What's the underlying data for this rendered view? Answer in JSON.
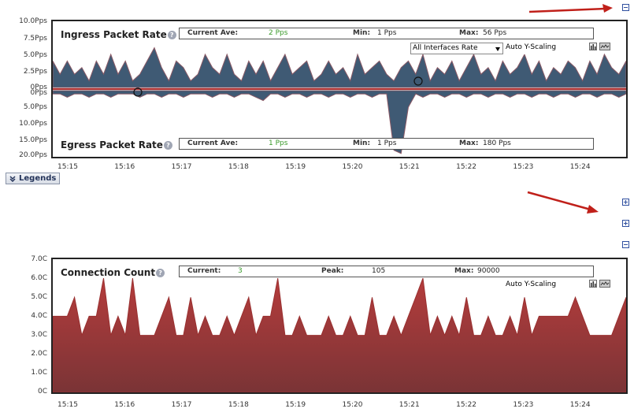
{
  "colors": {
    "packet_fill": "#3f5a74",
    "connection_fill": "#a83a3a",
    "current_value": "#3a9a2a",
    "baseline_red": "#b03030",
    "arrow_red": "#c0201a"
  },
  "x_ticks": [
    "15:15",
    "15:16",
    "15:17",
    "15:18",
    "15:19",
    "15:20",
    "15:21",
    "15:22",
    "15:23",
    "15:24"
  ],
  "packet_panel": {
    "ingress_title": "Ingress Packet Rate",
    "egress_title": "Egress Packet Rate",
    "help_glyph": "?",
    "ingress_stats": {
      "current_label": "Current Ave:",
      "current_value": "2 Pps",
      "min_label": "Min:",
      "min_value": "1 Pps",
      "max_label": "Max:",
      "max_value": "56 Pps"
    },
    "egress_stats": {
      "current_label": "Current Ave:",
      "current_value": "1 Pps",
      "min_label": "Min:",
      "min_value": "1 Pps",
      "max_label": "Max:",
      "max_value": "180 Pps"
    },
    "interface_select": "All Interfaces Rate",
    "scaling": "Auto Y-Scaling",
    "ingress_y_ticks": [
      "10.0Pps",
      "7.5Pps",
      "5.0Pps",
      "2.5Pps",
      "0Pps"
    ],
    "egress_y_ticks": [
      "0Pps",
      "5.0Pps",
      "10.0Pps",
      "15.0Pps",
      "20.0Pps"
    ]
  },
  "legends_button": "Legends",
  "connection_panel": {
    "title": "Connection Count",
    "help_glyph": "?",
    "stats": {
      "current_label": "Current:",
      "current_value": "3",
      "peak_label": "Peak:",
      "peak_value": "105",
      "max_label": "Max:",
      "max_value": "90000"
    },
    "scaling": "Auto Y-Scaling",
    "y_ticks": [
      "7.0C",
      "6.0C",
      "5.0C",
      "4.0C",
      "3.0C",
      "2.0C",
      "1.0C",
      "0C"
    ]
  },
  "chart_data": [
    {
      "type": "area",
      "title": "Ingress Packet Rate",
      "ylabel": "",
      "ylim": [
        0,
        10
      ],
      "x_range": [
        "15:14.7",
        "15:24.9"
      ],
      "series": [
        {
          "name": "Ingress Packet Rate",
          "values": [
            4,
            2,
            4,
            2,
            3,
            1,
            4,
            2,
            5,
            2,
            4,
            1,
            2,
            4,
            6,
            3,
            1,
            4,
            3,
            1,
            2,
            5,
            3,
            2,
            5,
            2,
            1,
            4,
            2,
            4,
            1,
            3,
            5,
            2,
            3,
            4,
            1,
            2,
            4,
            2,
            3,
            1,
            5,
            2,
            3,
            4,
            2,
            1,
            3,
            4,
            2,
            5,
            1,
            3,
            2,
            4,
            1,
            3,
            5,
            2,
            3,
            1,
            4,
            2,
            3,
            5,
            2,
            4,
            1,
            3,
            2,
            4,
            3,
            1,
            4,
            2,
            5,
            3,
            2,
            4
          ]
        }
      ]
    },
    {
      "type": "area",
      "title": "Egress Packet Rate",
      "ylabel": "",
      "ylim": [
        0,
        20
      ],
      "x_range": [
        "15:14.7",
        "15:24.9"
      ],
      "series": [
        {
          "name": "Egress Packet Rate",
          "values": [
            1,
            1,
            2,
            1,
            1,
            2,
            1,
            1,
            2,
            1,
            1,
            1,
            2,
            1,
            1,
            2,
            1,
            1,
            2,
            1,
            1,
            1,
            2,
            1,
            1,
            2,
            1,
            1,
            2,
            3,
            1,
            1,
            2,
            1,
            1,
            2,
            1,
            1,
            2,
            1,
            1,
            2,
            1,
            1,
            2,
            1,
            1,
            18,
            19,
            5,
            1,
            2,
            1,
            1,
            2,
            1,
            1,
            2,
            1,
            1,
            2,
            1,
            1,
            2,
            1,
            1,
            2,
            1,
            1,
            2,
            1,
            1,
            2,
            1,
            1,
            2,
            1,
            1,
            2,
            1
          ]
        }
      ]
    },
    {
      "type": "area",
      "title": "Connection Count",
      "ylabel": "",
      "ylim": [
        0,
        7
      ],
      "x_range": [
        "15:14.7",
        "15:24.9"
      ],
      "series": [
        {
          "name": "Connection Count",
          "values": [
            4,
            4,
            4,
            5,
            3,
            4,
            4,
            6,
            3,
            4,
            3,
            6,
            3,
            3,
            3,
            4,
            5,
            3,
            3,
            5,
            3,
            4,
            3,
            3,
            4,
            3,
            4,
            5,
            3,
            4,
            4,
            6,
            3,
            3,
            4,
            3,
            3,
            3,
            4,
            3,
            3,
            4,
            3,
            3,
            5,
            3,
            3,
            4,
            3,
            4,
            5,
            6,
            3,
            4,
            3,
            4,
            3,
            5,
            3,
            3,
            4,
            3,
            3,
            4,
            3,
            5,
            3,
            4,
            4,
            4,
            4,
            4,
            5,
            4,
            3,
            3,
            3,
            3,
            4,
            5
          ]
        }
      ]
    }
  ]
}
